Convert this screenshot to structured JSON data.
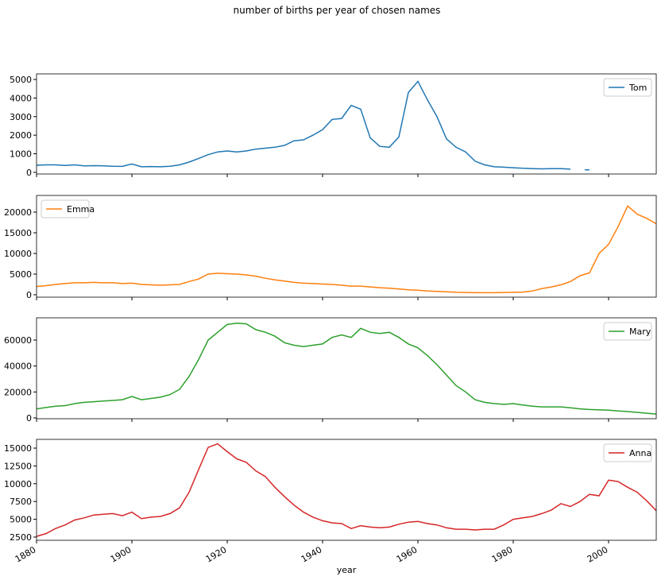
{
  "title": "number of  births per year of chosen names",
  "chart_data": [
    {
      "type": "line",
      "legend": "upper right",
      "xlim": [
        1880,
        2010
      ],
      "ylim": [
        -90,
        5300
      ],
      "yticks": [
        0,
        1000,
        2000,
        3000,
        4000,
        5000
      ],
      "x": [
        1880,
        1882,
        1884,
        1886,
        1888,
        1890,
        1892,
        1894,
        1896,
        1898,
        1900,
        1902,
        1904,
        1906,
        1908,
        1910,
        1912,
        1914,
        1916,
        1918,
        1920,
        1922,
        1924,
        1926,
        1928,
        1930,
        1932,
        1934,
        1936,
        1938,
        1940,
        1942,
        1944,
        1946,
        1948,
        1950,
        1952,
        1954,
        1956,
        1958,
        1960,
        1962,
        1964,
        1966,
        1968,
        1970,
        1972,
        1974,
        1976,
        1978,
        1980,
        1982,
        1984,
        1986,
        1988,
        1990,
        1992,
        1994,
        1995,
        1996
      ],
      "series": [
        {
          "name": "Tom",
          "color": "#1f77b4",
          "values": [
            380,
            400,
            400,
            370,
            400,
            350,
            360,
            350,
            330,
            320,
            450,
            300,
            310,
            300,
            330,
            400,
            550,
            750,
            950,
            1100,
            1150,
            1100,
            1150,
            1250,
            1300,
            1350,
            1450,
            1700,
            1750,
            2000,
            2300,
            2850,
            2900,
            3600,
            3400,
            1850,
            1400,
            1350,
            1900,
            4300,
            4900,
            3900,
            3000,
            1800,
            1350,
            1100,
            600,
            400,
            300,
            280,
            250,
            220,
            200,
            190,
            200,
            200,
            170,
            null,
            140,
            130
          ]
        }
      ]
    },
    {
      "type": "line",
      "legend": "upper left",
      "xlim": [
        1880,
        2010
      ],
      "ylim": [
        -580,
        24040
      ],
      "yticks": [
        0,
        5000,
        10000,
        15000,
        20000
      ],
      "x": [
        1880,
        1882,
        1884,
        1886,
        1888,
        1890,
        1892,
        1894,
        1896,
        1898,
        1900,
        1902,
        1904,
        1906,
        1908,
        1910,
        1912,
        1914,
        1916,
        1918,
        1920,
        1922,
        1924,
        1926,
        1928,
        1930,
        1932,
        1934,
        1936,
        1938,
        1940,
        1942,
        1944,
        1946,
        1948,
        1950,
        1952,
        1954,
        1956,
        1958,
        1960,
        1962,
        1964,
        1966,
        1968,
        1970,
        1972,
        1974,
        1976,
        1978,
        1980,
        1982,
        1984,
        1986,
        1988,
        1990,
        1992,
        1994,
        1996,
        1998,
        2000,
        2002,
        2004,
        2006,
        2008,
        2010
      ],
      "series": [
        {
          "name": "Emma",
          "color": "#ff7f0e",
          "values": [
            2000,
            2200,
            2500,
            2700,
            2900,
            2900,
            3000,
            2900,
            2900,
            2700,
            2800,
            2500,
            2400,
            2300,
            2400,
            2500,
            3200,
            3800,
            5000,
            5200,
            5100,
            5000,
            4800,
            4500,
            4000,
            3600,
            3300,
            3000,
            2800,
            2700,
            2600,
            2500,
            2300,
            2100,
            2100,
            1900,
            1700,
            1600,
            1400,
            1200,
            1100,
            900,
            800,
            700,
            600,
            550,
            500,
            500,
            500,
            550,
            600,
            650,
            900,
            1500,
            1900,
            2400,
            3200,
            4600,
            5300,
            10000,
            12200,
            16500,
            21500,
            19500,
            18500,
            17200
          ]
        }
      ]
    },
    {
      "type": "line",
      "legend": "upper right",
      "xlim": [
        1880,
        2010
      ],
      "ylim": [
        -610,
        77150
      ],
      "yticks": [
        0,
        20000,
        40000,
        60000
      ],
      "x": [
        1880,
        1882,
        1884,
        1886,
        1888,
        1890,
        1892,
        1894,
        1896,
        1898,
        1900,
        1902,
        1904,
        1906,
        1908,
        1910,
        1912,
        1914,
        1916,
        1918,
        1920,
        1922,
        1924,
        1926,
        1928,
        1930,
        1932,
        1934,
        1936,
        1938,
        1940,
        1942,
        1944,
        1946,
        1948,
        1950,
        1952,
        1954,
        1956,
        1958,
        1960,
        1962,
        1964,
        1966,
        1968,
        1970,
        1972,
        1974,
        1976,
        1978,
        1980,
        1982,
        1984,
        1986,
        1988,
        1990,
        1992,
        1994,
        1996,
        1998,
        2000,
        2002,
        2004,
        2006,
        2008,
        2010
      ],
      "series": [
        {
          "name": "Mary",
          "color": "#2ca02c",
          "values": [
            7000,
            8000,
            9000,
            9500,
            11000,
            12000,
            12500,
            13000,
            13500,
            14000,
            16500,
            14000,
            15000,
            16000,
            18000,
            22000,
            32000,
            45000,
            60000,
            66000,
            72000,
            73000,
            72500,
            68000,
            66000,
            63000,
            58000,
            56000,
            55000,
            56000,
            57000,
            62000,
            64000,
            62000,
            69000,
            66000,
            65000,
            66000,
            62000,
            57000,
            54000,
            48000,
            41000,
            33000,
            25000,
            20000,
            14000,
            12000,
            11000,
            10500,
            11000,
            10000,
            9000,
            8500,
            8500,
            8500,
            7800,
            7000,
            6500,
            6200,
            6000,
            5400,
            4900,
            4300,
            3600,
            3000
          ]
        }
      ]
    },
    {
      "type": "line",
      "legend": "upper right",
      "xlim": [
        1880,
        2010
      ],
      "ylim": [
        2050,
        16230
      ],
      "yticks": [
        2500,
        5000,
        7500,
        10000,
        12500,
        15000
      ],
      "xticks": [
        1880,
        1900,
        1920,
        1940,
        1960,
        1980,
        2000
      ],
      "xlabel": "year",
      "x": [
        1880,
        1882,
        1884,
        1886,
        1888,
        1890,
        1892,
        1894,
        1896,
        1898,
        1900,
        1902,
        1904,
        1906,
        1908,
        1910,
        1912,
        1914,
        1916,
        1918,
        1920,
        1922,
        1924,
        1926,
        1928,
        1930,
        1932,
        1934,
        1936,
        1938,
        1940,
        1942,
        1944,
        1946,
        1948,
        1950,
        1952,
        1954,
        1956,
        1958,
        1960,
        1962,
        1964,
        1966,
        1968,
        1970,
        1972,
        1974,
        1976,
        1978,
        1980,
        1982,
        1984,
        1986,
        1988,
        1990,
        1992,
        1994,
        1996,
        1998,
        2000,
        2002,
        2004,
        2006,
        2008,
        2010
      ],
      "series": [
        {
          "name": "Anna",
          "color": "#d62728",
          "values": [
            2600,
            3000,
            3700,
            4200,
            4900,
            5200,
            5600,
            5700,
            5800,
            5500,
            6000,
            5100,
            5300,
            5400,
            5800,
            6600,
            8800,
            12000,
            15100,
            15600,
            14500,
            13500,
            13000,
            11800,
            11000,
            9500,
            8200,
            7000,
            6000,
            5300,
            4800,
            4500,
            4400,
            3700,
            4100,
            3900,
            3800,
            3900,
            4300,
            4600,
            4700,
            4400,
            4200,
            3800,
            3600,
            3600,
            3500,
            3600,
            3600,
            4200,
            5000,
            5200,
            5400,
            5800,
            6300,
            7200,
            6800,
            7500,
            8500,
            8300,
            10500,
            10300,
            9500,
            8800,
            7600,
            6200
          ]
        }
      ]
    }
  ]
}
